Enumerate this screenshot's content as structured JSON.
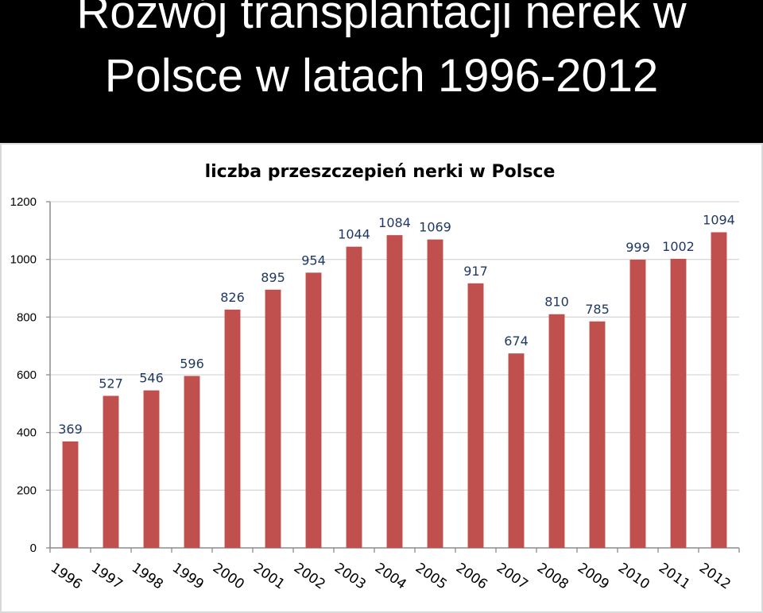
{
  "slide": {
    "title_line1": "Rozwój transplantacji nerek w",
    "title_line2": "Polsce w latach 1996-2012"
  },
  "colors": {
    "bar": "#c0504d",
    "gridline": "#d9d9d9",
    "data_label": "#1f3864",
    "background": "#000000",
    "panel": "#ffffff"
  },
  "chart_data": {
    "type": "bar",
    "title": "liczba przeszczepień nerki w Polsce",
    "xlabel": "",
    "ylabel": "",
    "categories": [
      "1996",
      "1997",
      "1998",
      "1999",
      "2000",
      "2001",
      "2002",
      "2003",
      "2004",
      "2005",
      "2006",
      "2007",
      "2008",
      "2009",
      "2010",
      "2011",
      "2012"
    ],
    "series": [
      {
        "values": [
          369,
          527,
          546,
          596,
          826,
          895,
          954,
          1044,
          1084,
          1069,
          917,
          674,
          810,
          785,
          999,
          1002,
          1094
        ]
      }
    ],
    "ylim": [
      0,
      1200
    ],
    "yticks": [
      0,
      200,
      400,
      600,
      800,
      1000,
      1200
    ],
    "grid": true,
    "legend": "none",
    "data_labels": true
  }
}
